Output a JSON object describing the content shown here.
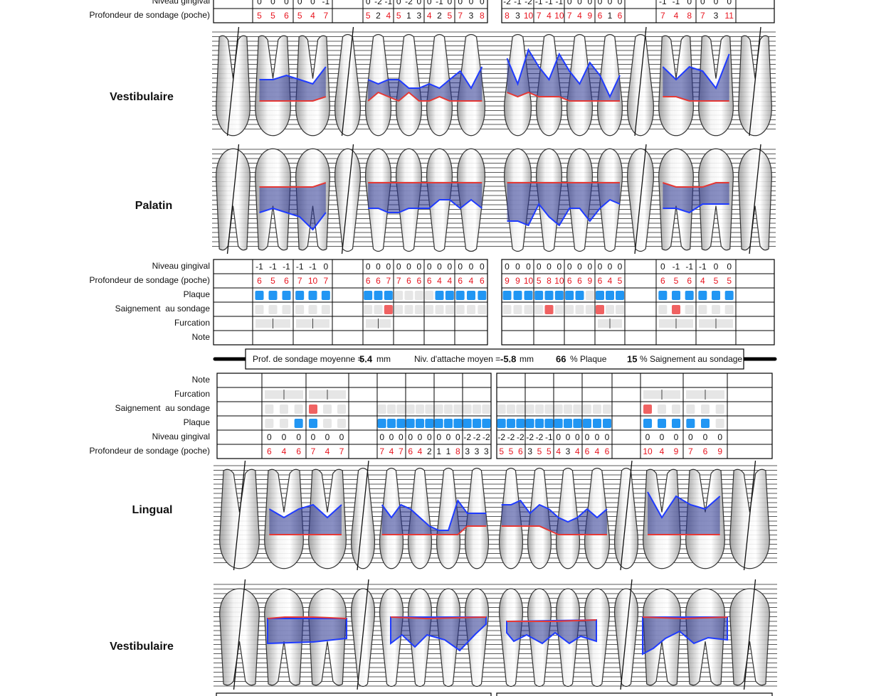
{
  "upper": {
    "top_table": {
      "rows": [
        "Niveau gingival",
        "Profondeur de sondage (poche)"
      ],
      "gingival": [
        null,
        [
          0,
          0,
          0
        ],
        [
          0,
          0,
          -1
        ],
        null,
        [
          0,
          -2,
          -1
        ],
        [
          0,
          -2,
          0
        ],
        [
          0,
          -1,
          0
        ],
        [
          0,
          0,
          0
        ],
        [
          -2,
          -1,
          -2
        ],
        [
          -1,
          -1,
          -1
        ],
        [
          0,
          0,
          0
        ],
        [
          0,
          0,
          0
        ],
        null,
        [
          -1,
          -1,
          0
        ],
        [
          0,
          0,
          0
        ],
        null
      ],
      "depth": [
        null,
        [
          5,
          5,
          6
        ],
        [
          5,
          4,
          7
        ],
        null,
        [
          5,
          2,
          4
        ],
        [
          5,
          1,
          3
        ],
        [
          4,
          2,
          5
        ],
        [
          7,
          3,
          8
        ],
        [
          8,
          3,
          10
        ],
        [
          7,
          4,
          10
        ],
        [
          7,
          4,
          9
        ],
        [
          6,
          1,
          6
        ],
        null,
        [
          7,
          4,
          8
        ],
        [
          7,
          3,
          11
        ],
        null
      ]
    },
    "view_labels": [
      "Vestibulaire",
      "Palatin"
    ],
    "table": {
      "rows": [
        "Niveau gingival",
        "Profondeur de sondage (poche)",
        "Plaque",
        "Saignement  au sondage",
        "Furcation",
        "Note"
      ],
      "gingival": [
        null,
        [
          -1,
          -1,
          -1
        ],
        [
          -1,
          -1,
          0
        ],
        null,
        [
          0,
          0,
          0
        ],
        [
          0,
          0,
          0
        ],
        [
          0,
          0,
          0
        ],
        [
          0,
          0,
          0
        ],
        [
          0,
          0,
          0
        ],
        [
          0,
          0,
          0
        ],
        [
          0,
          0,
          0
        ],
        [
          0,
          0,
          0
        ],
        null,
        [
          0,
          -1,
          -1
        ],
        [
          -1,
          0,
          0
        ],
        null
      ],
      "depth": [
        null,
        [
          6,
          5,
          6
        ],
        [
          7,
          10,
          7
        ],
        null,
        [
          6,
          6,
          7
        ],
        [
          7,
          6,
          6
        ],
        [
          6,
          4,
          4
        ],
        [
          6,
          4,
          6
        ],
        [
          9,
          9,
          10
        ],
        [
          5,
          8,
          10
        ],
        [
          6,
          6,
          9
        ],
        [
          6,
          4,
          5
        ],
        null,
        [
          6,
          5,
          6
        ],
        [
          4,
          5,
          5
        ],
        null
      ],
      "plaque": [
        null,
        [
          1,
          1,
          1
        ],
        [
          1,
          1,
          1
        ],
        null,
        [
          1,
          1,
          1
        ],
        [
          0,
          0,
          0
        ],
        [
          0,
          1,
          1
        ],
        [
          1,
          1,
          1
        ],
        [
          1,
          1,
          1
        ],
        [
          1,
          1,
          1
        ],
        [
          1,
          1,
          0
        ],
        [
          1,
          1,
          1
        ],
        null,
        [
          1,
          1,
          1
        ],
        [
          1,
          1,
          1
        ],
        null
      ],
      "bleeding": [
        null,
        [
          0,
          0,
          0
        ],
        [
          0,
          0,
          0
        ],
        null,
        [
          0,
          0,
          1
        ],
        [
          0,
          0,
          0
        ],
        [
          0,
          0,
          0
        ],
        [
          0,
          0,
          0
        ],
        [
          0,
          0,
          0
        ],
        [
          0,
          1,
          0
        ],
        [
          0,
          0,
          0
        ],
        [
          1,
          0,
          0
        ],
        null,
        [
          0,
          1,
          0
        ],
        [
          0,
          0,
          0
        ],
        null
      ]
    }
  },
  "summary": {
    "mean_depth_label": "Prof. de sondage moyenne =",
    "mean_depth": 5.4,
    "mean_depth_unit": "mm",
    "mean_attachment_label": "Niv. d'attache moyen =",
    "mean_attachment": -5.8,
    "mean_attachment_unit": "mm",
    "plaque_pct": 66,
    "plaque_label": "% Plaque",
    "bleeding_pct": 15,
    "bleeding_label": "% Saignement au sondage"
  },
  "lower": {
    "view_labels": [
      "Lingual",
      "Vestibulaire"
    ],
    "table": {
      "rows": [
        "Note",
        "Furcation",
        "Saignement  au sondage",
        "Plaque",
        "Niveau gingival",
        "Profondeur de sondage (poche)"
      ],
      "gingival": [
        null,
        [
          0,
          0,
          0
        ],
        [
          0,
          0,
          0
        ],
        null,
        [
          0,
          0,
          0
        ],
        [
          0,
          0,
          0
        ],
        [
          0,
          0,
          0
        ],
        [
          -2,
          -2,
          -2
        ],
        [
          -2,
          -2,
          -2
        ],
        [
          -2,
          -2,
          -1
        ],
        [
          0,
          0,
          0
        ],
        [
          0,
          0,
          0
        ],
        null,
        [
          0,
          0,
          0
        ],
        [
          0,
          0,
          0
        ],
        null
      ],
      "depth": [
        null,
        [
          6,
          4,
          6
        ],
        [
          7,
          4,
          7
        ],
        null,
        [
          7,
          4,
          7
        ],
        [
          6,
          4,
          2
        ],
        [
          1,
          1,
          8
        ],
        [
          3,
          3,
          3
        ],
        [
          5,
          5,
          6
        ],
        [
          3,
          5,
          5
        ],
        [
          4,
          3,
          4
        ],
        [
          6,
          4,
          6
        ],
        null,
        [
          10,
          4,
          9
        ],
        [
          7,
          6,
          9
        ],
        null
      ],
      "plaque": [
        null,
        [
          0,
          0,
          1
        ],
        [
          1,
          0,
          0
        ],
        null,
        [
          1,
          1,
          1
        ],
        [
          1,
          1,
          1
        ],
        [
          1,
          1,
          1
        ],
        [
          1,
          1,
          1
        ],
        [
          1,
          1,
          1
        ],
        [
          1,
          1,
          1
        ],
        [
          1,
          1,
          1
        ],
        [
          1,
          1,
          1
        ],
        null,
        [
          1,
          1,
          1
        ],
        [
          1,
          1,
          0
        ],
        null
      ],
      "bleeding": [
        null,
        [
          0,
          0,
          0
        ],
        [
          1,
          0,
          0
        ],
        null,
        [
          0,
          0,
          0
        ],
        [
          0,
          0,
          0
        ],
        [
          0,
          0,
          0
        ],
        [
          0,
          0,
          0
        ],
        [
          0,
          0,
          0
        ],
        [
          0,
          0,
          0
        ],
        [
          0,
          0,
          0
        ],
        [
          0,
          0,
          0
        ],
        null,
        [
          1,
          0,
          0
        ],
        [
          0,
          0,
          0
        ],
        null
      ]
    }
  }
}
